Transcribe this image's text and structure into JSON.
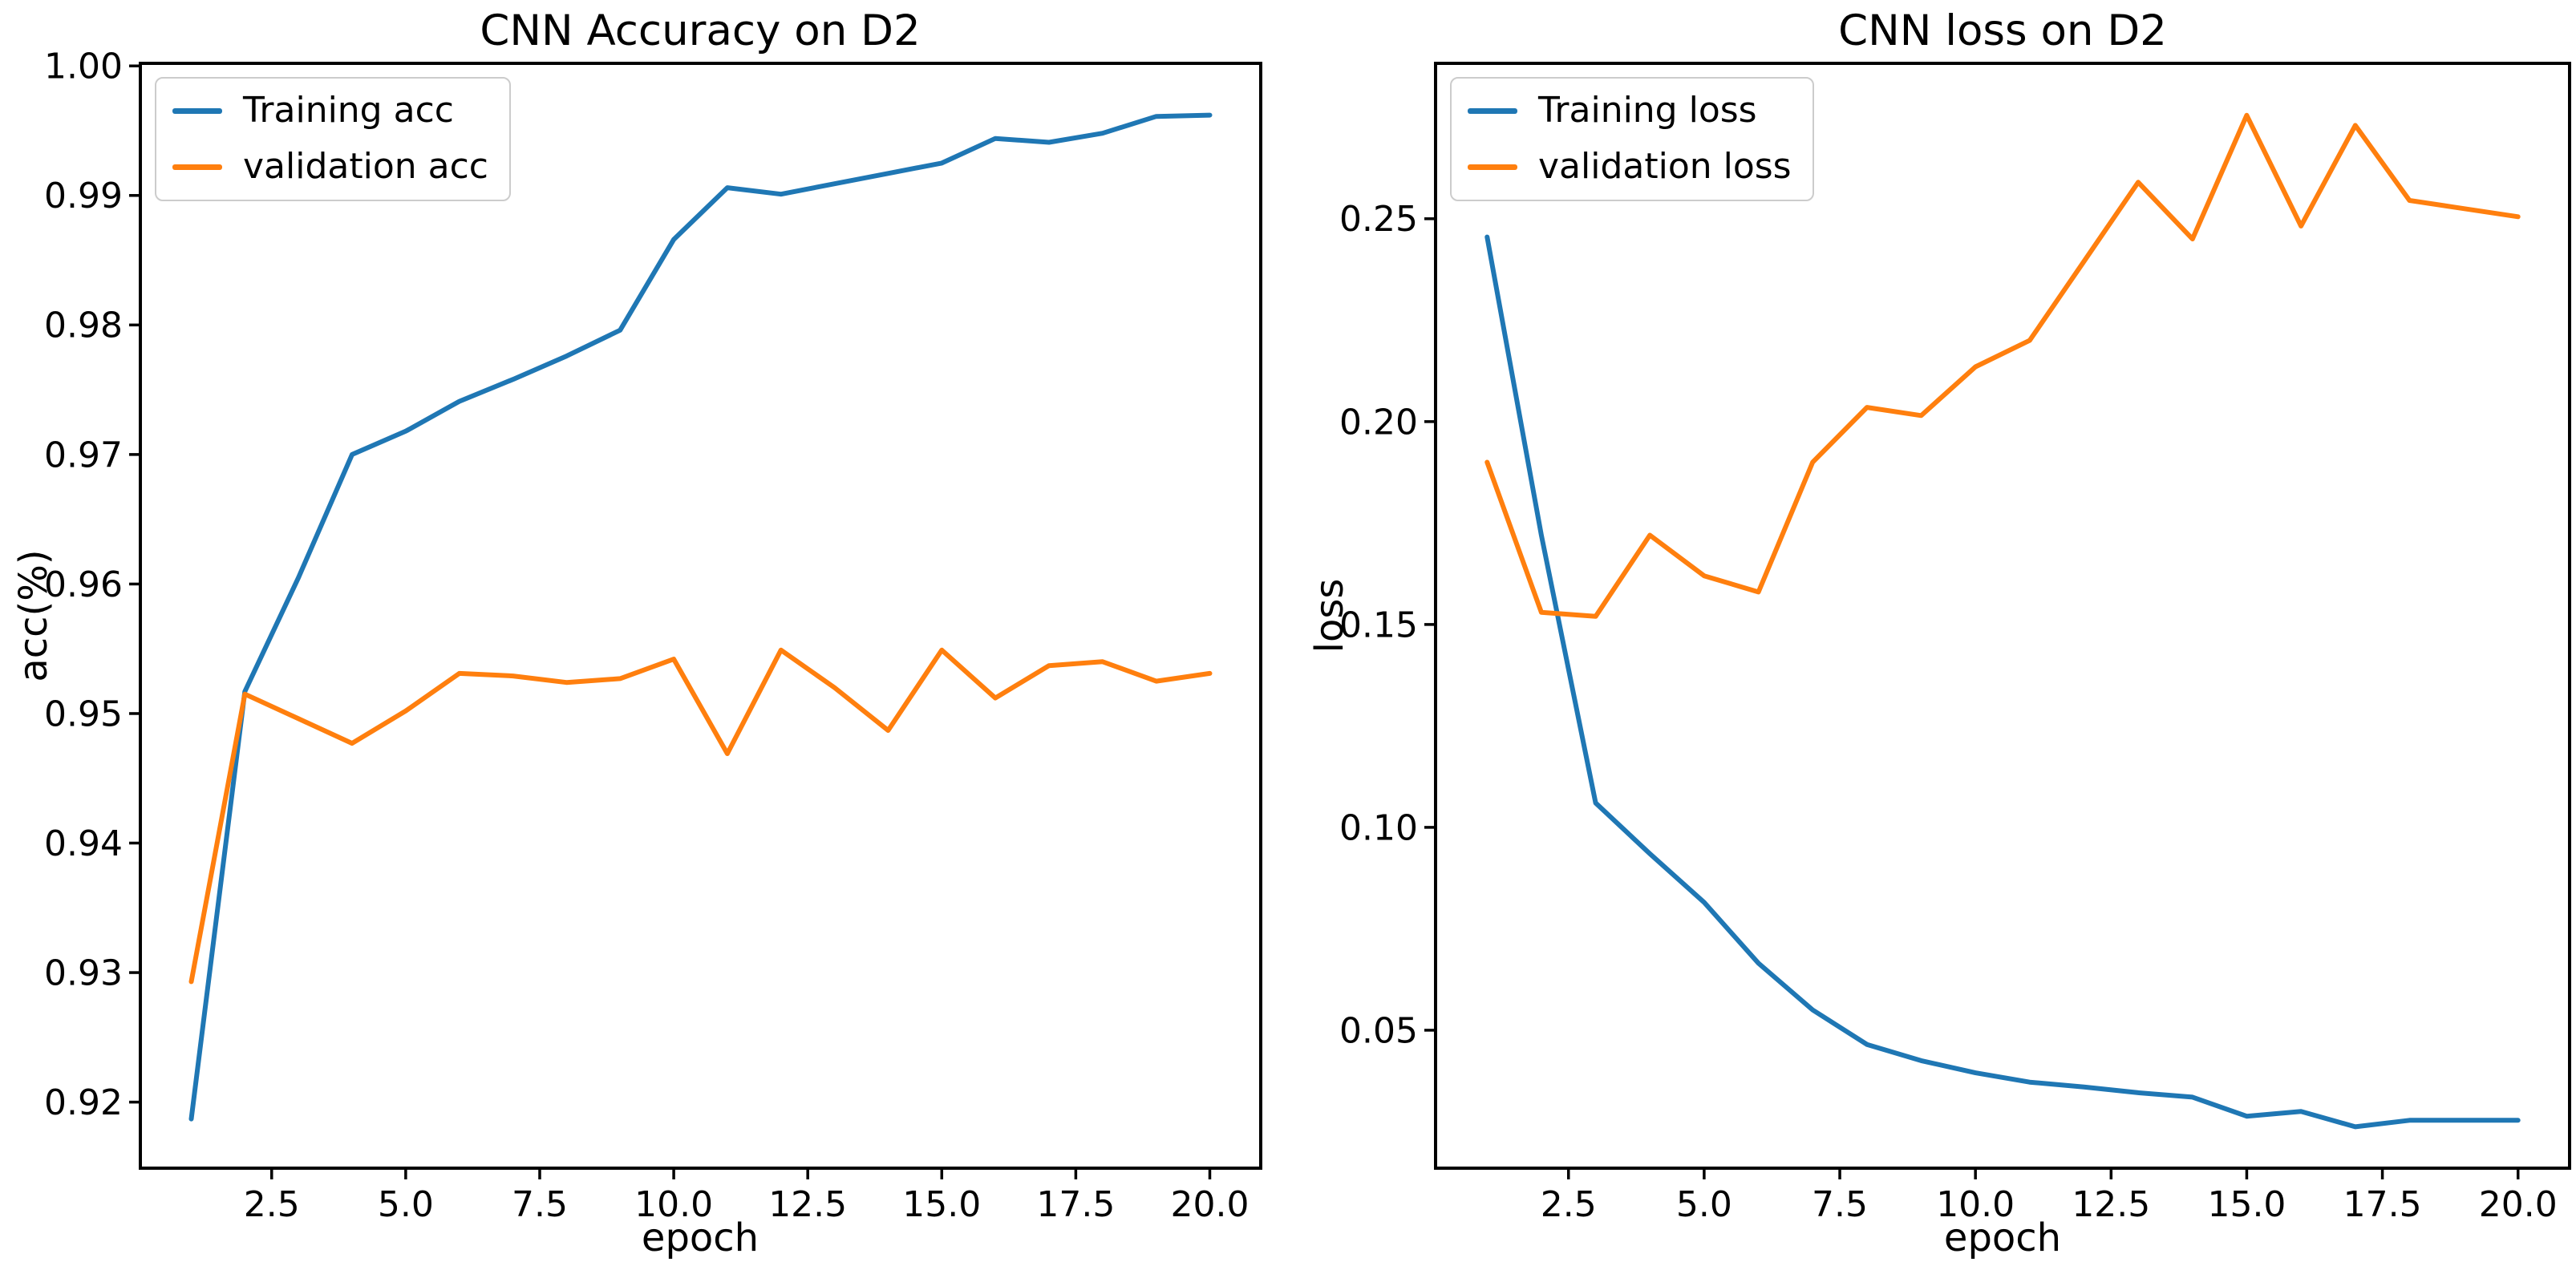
{
  "figure_background": "#ffffff",
  "text_color": "#000000",
  "chart_data": [
    {
      "type": "line",
      "title": "CNN Accuracy on D2",
      "xlabel": "epoch",
      "ylabel": "acc(%)",
      "x": [
        1,
        2,
        3,
        4,
        5,
        6,
        7,
        8,
        9,
        10,
        11,
        12,
        13,
        14,
        15,
        16,
        17,
        18,
        19,
        20
      ],
      "series": [
        {
          "name": "Training acc",
          "color": "#1f77b4",
          "values": [
            0.9187,
            0.9517,
            0.9605,
            0.97,
            0.9718,
            0.9741,
            0.9758,
            0.9776,
            0.9796,
            0.9866,
            0.9906,
            0.9901,
            0.9909,
            0.9917,
            0.9925,
            0.9944,
            0.9941,
            0.9948,
            0.9961,
            0.9962
          ]
        },
        {
          "name": "validation acc",
          "color": "#ff7f0e",
          "values": [
            0.9293,
            0.9515,
            0.9496,
            0.9477,
            0.9502,
            0.9531,
            0.9529,
            0.9524,
            0.9527,
            0.9542,
            0.9469,
            0.9549,
            0.952,
            0.9487,
            0.9549,
            0.9512,
            0.9537,
            0.954,
            0.9525,
            0.9531
          ]
        }
      ],
      "xlim": [
        0.05,
        20.95
      ],
      "ylim": [
        0.9149,
        1.0002
      ],
      "xticks": [
        {
          "label": "2.5",
          "value": 2.5
        },
        {
          "label": "5.0",
          "value": 5.0
        },
        {
          "label": "7.5",
          "value": 7.5
        },
        {
          "label": "10.0",
          "value": 10.0
        },
        {
          "label": "12.5",
          "value": 12.5
        },
        {
          "label": "15.0",
          "value": 15.0
        },
        {
          "label": "17.5",
          "value": 17.5
        },
        {
          "label": "20.0",
          "value": 20.0
        }
      ],
      "yticks": [
        {
          "label": "0.92",
          "value": 0.92
        },
        {
          "label": "0.93",
          "value": 0.93
        },
        {
          "label": "0.94",
          "value": 0.94
        },
        {
          "label": "0.95",
          "value": 0.95
        },
        {
          "label": "0.96",
          "value": 0.96
        },
        {
          "label": "0.97",
          "value": 0.97
        },
        {
          "label": "0.98",
          "value": 0.98
        },
        {
          "label": "0.99",
          "value": 0.99
        },
        {
          "label": "1.00",
          "value": 1.0
        }
      ],
      "grid": false,
      "legend_position": "upper left"
    },
    {
      "type": "line",
      "title": "CNN loss on D2",
      "xlabel": "epoch",
      "ylabel": "loss",
      "x": [
        1,
        2,
        3,
        4,
        5,
        6,
        7,
        8,
        9,
        10,
        11,
        12,
        13,
        14,
        15,
        16,
        17,
        18,
        19,
        20
      ],
      "series": [
        {
          "name": "Training loss",
          "color": "#1f77b4",
          "values": [
            0.2455,
            0.172,
            0.106,
            0.0935,
            0.0815,
            0.0665,
            0.055,
            0.0465,
            0.0425,
            0.0395,
            0.0372,
            0.036,
            0.0346,
            0.0335,
            0.0288,
            0.03,
            0.0262,
            0.0278,
            0.0278,
            0.0278
          ]
        },
        {
          "name": "validation loss",
          "color": "#ff7f0e",
          "values": [
            0.19,
            0.153,
            0.152,
            0.172,
            0.162,
            0.158,
            0.19,
            0.2035,
            0.2015,
            0.2135,
            0.22,
            0.2395,
            0.259,
            0.245,
            0.2755,
            0.2482,
            0.273,
            0.2545,
            0.2525,
            0.2505
          ]
        }
      ],
      "xlim": [
        0.05,
        20.95
      ],
      "ylim": [
        0.016,
        0.2883
      ],
      "xticks": [
        {
          "label": "2.5",
          "value": 2.5
        },
        {
          "label": "5.0",
          "value": 5.0
        },
        {
          "label": "7.5",
          "value": 7.5
        },
        {
          "label": "10.0",
          "value": 10.0
        },
        {
          "label": "12.5",
          "value": 12.5
        },
        {
          "label": "15.0",
          "value": 15.0
        },
        {
          "label": "17.5",
          "value": 17.5
        },
        {
          "label": "20.0",
          "value": 20.0
        }
      ],
      "yticks": [
        {
          "label": "0.05",
          "value": 0.05
        },
        {
          "label": "0.10",
          "value": 0.1
        },
        {
          "label": "0.15",
          "value": 0.15
        },
        {
          "label": "0.20",
          "value": 0.2
        },
        {
          "label": "0.25",
          "value": 0.25
        }
      ],
      "grid": false,
      "legend_position": "upper left"
    }
  ]
}
